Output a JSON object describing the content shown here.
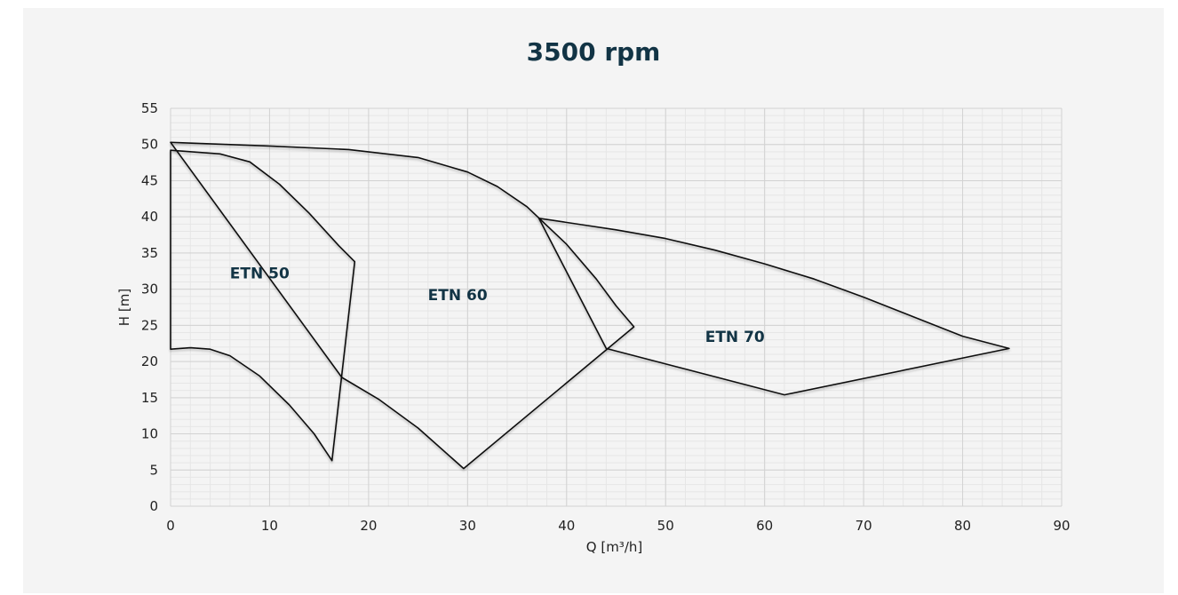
{
  "chart_data": {
    "type": "line",
    "title": "3500 rpm",
    "xlabel": "Q [m³/h]",
    "ylabel": "H [m]",
    "xlim": [
      0,
      90
    ],
    "ylim": [
      0,
      55
    ],
    "xticks": [
      0,
      10,
      20,
      30,
      40,
      50,
      60,
      70,
      80,
      90
    ],
    "yticks": [
      0,
      5,
      10,
      15,
      20,
      25,
      30,
      35,
      40,
      45,
      50,
      55
    ],
    "grid": true,
    "region_labels": [
      {
        "text": "ETN 50",
        "x": 9,
        "y": 31.5
      },
      {
        "text": "ETN 60",
        "x": 29,
        "y": 28.5
      },
      {
        "text": "ETN 70",
        "x": 57,
        "y": 22.7
      }
    ],
    "series": [
      {
        "points": [
          [
            0,
            49.2
          ],
          [
            5,
            48.7
          ],
          [
            8,
            47.6
          ],
          [
            11,
            44.5
          ],
          [
            14,
            40.5
          ],
          [
            17,
            36
          ],
          [
            18.6,
            33.8
          ],
          [
            16.3,
            6.3
          ],
          [
            14.5,
            10
          ],
          [
            12,
            14
          ],
          [
            9,
            18
          ],
          [
            6,
            20.8
          ],
          [
            4,
            21.7
          ],
          [
            2,
            21.9
          ],
          [
            0,
            21.7
          ]
        ]
      },
      {
        "points": [
          [
            0,
            50.3
          ],
          [
            10,
            49.8
          ],
          [
            18,
            49.3
          ],
          [
            25,
            48.2
          ],
          [
            30,
            46.2
          ],
          [
            33,
            44.2
          ],
          [
            36,
            41.4
          ],
          [
            40,
            36.2
          ],
          [
            43,
            31.4
          ],
          [
            45,
            27.7
          ],
          [
            46.8,
            24.8
          ],
          [
            29.6,
            5.2
          ],
          [
            25,
            10.8
          ],
          [
            21,
            14.8
          ],
          [
            17.3,
            17.8
          ]
        ]
      },
      {
        "points": [
          [
            37.2,
            39.8
          ],
          [
            45,
            38.2
          ],
          [
            50,
            37
          ],
          [
            55,
            35.4
          ],
          [
            60,
            33.5
          ],
          [
            65,
            31.4
          ],
          [
            70,
            28.9
          ],
          [
            75,
            26.2
          ],
          [
            80,
            23.5
          ],
          [
            84.7,
            21.8
          ],
          [
            62,
            15.4
          ],
          [
            44,
            21.8
          ]
        ]
      }
    ]
  }
}
